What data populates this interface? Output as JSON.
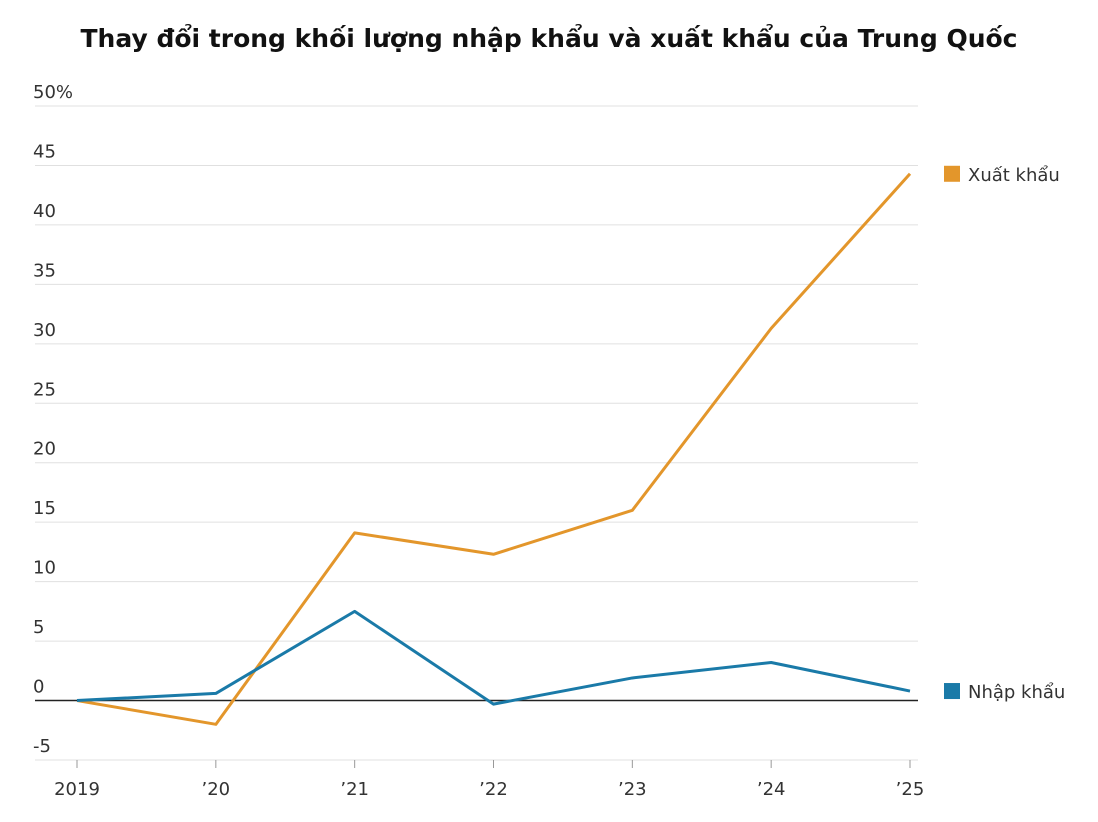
{
  "chart_data": {
    "type": "line",
    "title": "Thay đổi trong khối lượng nhập khẩu và xuất khẩu của Trung Quốc",
    "categories": [
      "2019",
      "’20",
      "’21",
      "’22",
      "’23",
      "’24",
      "’25"
    ],
    "series": [
      {
        "name": "Xuất khẩu",
        "color": "#e3962b",
        "values": [
          0,
          -2,
          14.1,
          12.3,
          16,
          31.3,
          44.3
        ]
      },
      {
        "name": "Nhập khẩu",
        "color": "#1a7aa8",
        "values": [
          0,
          0.6,
          7.5,
          -0.3,
          1.9,
          3.2,
          0.8
        ]
      }
    ],
    "ylim": [
      -5,
      50
    ],
    "yticks": [
      -5,
      0,
      5,
      10,
      15,
      20,
      25,
      30,
      35,
      40,
      45,
      {
        "value": 50,
        "label": "50%"
      }
    ],
    "grid": true
  }
}
